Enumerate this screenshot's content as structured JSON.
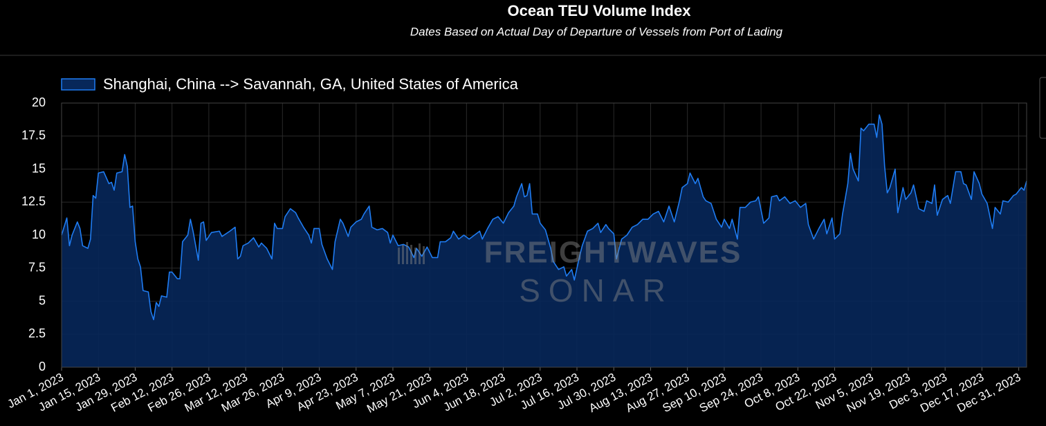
{
  "chart_data": {
    "type": "area",
    "title": "Ocean TEU Volume Index",
    "subtitle": "Dates Based on Actual Day of Departure of Vessels from Port of Lading",
    "watermark": {
      "line1": "FREIGHTWAVES",
      "line2": "SONAR"
    },
    "legend": "top-left",
    "grid": true,
    "xlim": [
      "2023-01-01",
      "2024-01-03"
    ],
    "ylim": [
      0,
      20
    ],
    "yticks": [
      0,
      2.5,
      5,
      7.5,
      10,
      12.5,
      15,
      17.5,
      20
    ],
    "xticks": [
      {
        "value": "2023-01-01",
        "label": "Jan 1, 2023"
      },
      {
        "value": "2023-01-15",
        "label": "Jan 15, 2023"
      },
      {
        "value": "2023-01-29",
        "label": "Jan 29, 2023"
      },
      {
        "value": "2023-02-12",
        "label": "Feb 12, 2023"
      },
      {
        "value": "2023-02-26",
        "label": "Feb 26, 2023"
      },
      {
        "value": "2023-03-12",
        "label": "Mar 12, 2023"
      },
      {
        "value": "2023-03-26",
        "label": "Mar 26, 2023"
      },
      {
        "value": "2023-04-09",
        "label": "Apr 9, 2023"
      },
      {
        "value": "2023-04-23",
        "label": "Apr 23, 2023"
      },
      {
        "value": "2023-05-07",
        "label": "May 7, 2023"
      },
      {
        "value": "2023-05-21",
        "label": "May 21, 2023"
      },
      {
        "value": "2023-06-04",
        "label": "Jun 4, 2023"
      },
      {
        "value": "2023-06-18",
        "label": "Jun 18, 2023"
      },
      {
        "value": "2023-07-02",
        "label": "Jul 2, 2023"
      },
      {
        "value": "2023-07-16",
        "label": "Jul 16, 2023"
      },
      {
        "value": "2023-07-30",
        "label": "Jul 30, 2023"
      },
      {
        "value": "2023-08-13",
        "label": "Aug 13, 2023"
      },
      {
        "value": "2023-08-27",
        "label": "Aug 27, 2023"
      },
      {
        "value": "2023-09-10",
        "label": "Sep 10, 2023"
      },
      {
        "value": "2023-09-24",
        "label": "Sep 24, 2023"
      },
      {
        "value": "2023-10-08",
        "label": "Oct 8, 2023"
      },
      {
        "value": "2023-10-22",
        "label": "Oct 22, 2023"
      },
      {
        "value": "2023-11-05",
        "label": "Nov 5, 2023"
      },
      {
        "value": "2023-11-19",
        "label": "Nov 19, 2023"
      },
      {
        "value": "2023-12-03",
        "label": "Dec 3, 2023"
      },
      {
        "value": "2023-12-17",
        "label": "Dec 17, 2023"
      },
      {
        "value": "2023-12-31",
        "label": "Dec 31, 2023"
      }
    ],
    "x": [
      "2023-01-01",
      "2023-01-03",
      "2023-01-04",
      "2023-01-05",
      "2023-01-07",
      "2023-01-08",
      "2023-01-09",
      "2023-01-11",
      "2023-01-12",
      "2023-01-13",
      "2023-01-14",
      "2023-01-15",
      "2023-01-17",
      "2023-01-19",
      "2023-01-20",
      "2023-01-21",
      "2023-01-22",
      "2023-01-24",
      "2023-01-25",
      "2023-01-26",
      "2023-01-27",
      "2023-01-28",
      "2023-01-29",
      "2023-01-30",
      "2023-01-31",
      "2023-02-01",
      "2023-02-03",
      "2023-02-04",
      "2023-02-05",
      "2023-02-06",
      "2023-02-07",
      "2023-02-08",
      "2023-02-10",
      "2023-02-11",
      "2023-02-12",
      "2023-02-14",
      "2023-02-15",
      "2023-02-16",
      "2023-02-18",
      "2023-02-19",
      "2023-02-20",
      "2023-02-22",
      "2023-02-23",
      "2023-02-24",
      "2023-02-25",
      "2023-02-27",
      "2023-03-02",
      "2023-03-03",
      "2023-03-06",
      "2023-03-08",
      "2023-03-09",
      "2023-03-10",
      "2023-03-11",
      "2023-03-13",
      "2023-03-15",
      "2023-03-17",
      "2023-03-18",
      "2023-03-20",
      "2023-03-22",
      "2023-03-23",
      "2023-03-24",
      "2023-03-26",
      "2023-03-27",
      "2023-03-29",
      "2023-03-31",
      "2023-04-01",
      "2023-04-03",
      "2023-04-05",
      "2023-04-06",
      "2023-04-07",
      "2023-04-09",
      "2023-04-10",
      "2023-04-12",
      "2023-04-14",
      "2023-04-15",
      "2023-04-17",
      "2023-04-18",
      "2023-04-20",
      "2023-04-21",
      "2023-04-23",
      "2023-04-25",
      "2023-04-26",
      "2023-04-28",
      "2023-04-29",
      "2023-05-01",
      "2023-05-03",
      "2023-05-05",
      "2023-05-06",
      "2023-05-07",
      "2023-05-09",
      "2023-05-11",
      "2023-05-13",
      "2023-05-15",
      "2023-05-16",
      "2023-05-18",
      "2023-05-20",
      "2023-05-22",
      "2023-05-24",
      "2023-05-25",
      "2023-05-27",
      "2023-05-29",
      "2023-05-30",
      "2023-06-01",
      "2023-06-03",
      "2023-06-05",
      "2023-06-07",
      "2023-06-09",
      "2023-06-10",
      "2023-06-12",
      "2023-06-14",
      "2023-06-16",
      "2023-06-18",
      "2023-06-20",
      "2023-06-22",
      "2023-06-23",
      "2023-06-25",
      "2023-06-26",
      "2023-06-27",
      "2023-06-28",
      "2023-06-29",
      "2023-07-01",
      "2023-07-02",
      "2023-07-04",
      "2023-07-06",
      "2023-07-07",
      "2023-07-09",
      "2023-07-11",
      "2023-07-12",
      "2023-07-14",
      "2023-07-15",
      "2023-07-17",
      "2023-07-18",
      "2023-07-20",
      "2023-07-22",
      "2023-07-24",
      "2023-07-25",
      "2023-07-27",
      "2023-07-28",
      "2023-07-30",
      "2023-07-31",
      "2023-08-02",
      "2023-08-04",
      "2023-08-06",
      "2023-08-08",
      "2023-08-10",
      "2023-08-12",
      "2023-08-14",
      "2023-08-16",
      "2023-08-18",
      "2023-08-20",
      "2023-08-22",
      "2023-08-24",
      "2023-08-25",
      "2023-08-27",
      "2023-08-28",
      "2023-08-30",
      "2023-08-31",
      "2023-09-02",
      "2023-09-03",
      "2023-09-05",
      "2023-09-07",
      "2023-09-09",
      "2023-09-10",
      "2023-09-12",
      "2023-09-13",
      "2023-09-15",
      "2023-09-16",
      "2023-09-18",
      "2023-09-20",
      "2023-09-22",
      "2023-09-23",
      "2023-09-25",
      "2023-09-27",
      "2023-09-28",
      "2023-09-30",
      "2023-10-01",
      "2023-10-03",
      "2023-10-05",
      "2023-10-07",
      "2023-10-09",
      "2023-10-11",
      "2023-10-12",
      "2023-10-14",
      "2023-10-16",
      "2023-10-18",
      "2023-10-19",
      "2023-10-21",
      "2023-10-22",
      "2023-10-24",
      "2023-10-25",
      "2023-10-27",
      "2023-10-28",
      "2023-10-29",
      "2023-10-31",
      "2023-11-01",
      "2023-11-02",
      "2023-11-04",
      "2023-11-06",
      "2023-11-07",
      "2023-11-08",
      "2023-11-09",
      "2023-11-10",
      "2023-11-11",
      "2023-11-12",
      "2023-11-14",
      "2023-11-15",
      "2023-11-17",
      "2023-11-18",
      "2023-11-20",
      "2023-11-21",
      "2023-11-23",
      "2023-11-25",
      "2023-11-26",
      "2023-11-28",
      "2023-11-29",
      "2023-11-30",
      "2023-12-02",
      "2023-12-04",
      "2023-12-05",
      "2023-12-07",
      "2023-12-09",
      "2023-12-10",
      "2023-12-11",
      "2023-12-13",
      "2023-12-14",
      "2023-12-16",
      "2023-12-17",
      "2023-12-19",
      "2023-12-21",
      "2023-12-22",
      "2023-12-24",
      "2023-12-25",
      "2023-12-27",
      "2023-12-29",
      "2023-12-30",
      "2024-01-01",
      "2024-01-02",
      "2024-01-03"
    ],
    "series": [
      {
        "name": "Shanghai, China --> Savannah, GA, United States of America",
        "color": "#1f7cf2",
        "fill": "#07275a",
        "values": [
          10.0,
          11.3,
          9.2,
          10.0,
          11.0,
          10.5,
          9.2,
          9.0,
          9.7,
          13.0,
          12.8,
          14.7,
          14.8,
          13.9,
          14.0,
          13.4,
          14.7,
          14.8,
          16.1,
          15.2,
          12.1,
          12.2,
          9.5,
          8.2,
          7.6,
          5.8,
          5.7,
          4.2,
          3.6,
          4.9,
          4.6,
          5.4,
          5.3,
          7.2,
          7.2,
          6.7,
          6.7,
          9.5,
          10.0,
          11.2,
          10.3,
          8.1,
          10.9,
          11.0,
          9.6,
          10.2,
          10.3,
          9.9,
          10.3,
          10.6,
          8.2,
          8.4,
          9.2,
          9.4,
          9.8,
          9.1,
          9.4,
          9.0,
          8.2,
          10.9,
          10.5,
          10.5,
          11.4,
          12.0,
          11.7,
          11.3,
          10.6,
          10.0,
          9.4,
          10.5,
          10.5,
          9.3,
          8.2,
          7.4,
          9.5,
          11.2,
          10.9,
          9.9,
          10.6,
          11.0,
          11.2,
          11.6,
          12.2,
          10.6,
          10.4,
          10.5,
          10.2,
          9.4,
          10.0,
          9.2,
          9.3,
          9.1,
          8.3,
          9.0,
          8.4,
          9.1,
          8.3,
          8.3,
          9.5,
          9.5,
          9.8,
          10.3,
          9.7,
          10.0,
          9.7,
          10.0,
          10.3,
          9.7,
          10.5,
          11.2,
          11.4,
          10.9,
          11.7,
          12.2,
          12.9,
          13.9,
          12.9,
          13.0,
          13.9,
          11.6,
          11.6,
          10.9,
          10.4,
          9.0,
          8.0,
          7.4,
          7.6,
          6.9,
          7.4,
          6.6,
          8.4,
          9.2,
          10.3,
          10.5,
          10.9,
          10.2,
          10.8,
          10.5,
          10.1,
          8.2,
          9.7,
          10.0,
          10.6,
          10.8,
          11.2,
          11.2,
          11.6,
          11.8,
          11.0,
          12.2,
          11.0,
          12.6,
          13.6,
          13.9,
          14.7,
          13.9,
          14.3,
          12.9,
          12.6,
          12.4,
          11.2,
          10.6,
          11.2,
          10.5,
          11.2,
          9.7,
          12.1,
          12.1,
          12.5,
          12.6,
          12.9,
          10.9,
          11.3,
          12.9,
          13.0,
          12.6,
          12.9,
          12.4,
          12.6,
          12.1,
          12.4,
          10.8,
          9.7,
          10.5,
          11.2,
          10.1,
          11.3,
          9.7,
          10.1,
          11.6,
          13.9,
          16.2,
          15.0,
          14.1,
          18.1,
          17.9,
          18.4,
          18.4,
          17.4,
          19.1,
          18.4,
          15.2,
          13.2,
          13.6,
          15.0,
          11.7,
          13.6,
          12.7,
          13.2,
          13.8,
          12.0,
          11.8,
          12.6,
          12.4,
          13.8,
          11.5,
          12.7,
          13.0,
          12.4,
          14.8,
          14.8,
          13.9,
          13.8,
          12.7,
          14.8,
          13.9,
          13.1,
          12.4,
          10.5,
          12.1,
          11.6,
          12.6,
          12.5,
          13.0,
          13.1,
          13.6,
          13.4,
          14.1
        ]
      }
    ]
  }
}
